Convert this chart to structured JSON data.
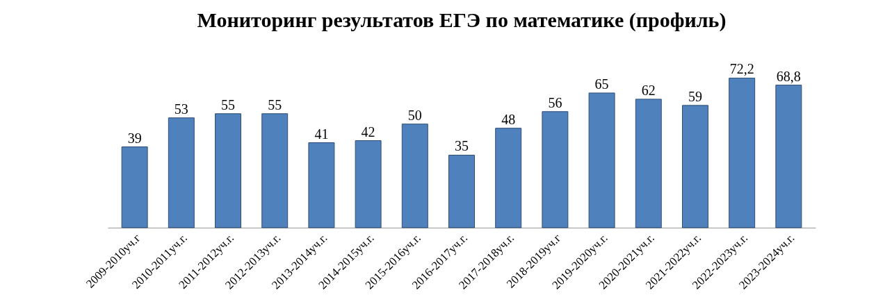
{
  "chart_data": {
    "type": "bar",
    "title": "Мониторинг результатов ЕГЭ по математике (профиль)",
    "categories": [
      "2009-2010уч.г",
      "2010-2011уч.г.",
      "2011-2012уч.г.",
      "2012-2013уч.г.",
      "2013-2014уч.г.",
      "2014-2015уч.г.",
      "2015-2016уч.г.",
      "2016-2017уч.г.",
      "2017-2018уч.г.",
      "2018-2019уч.г",
      "2019-2020уч.г.",
      "2020-2021уч.г.",
      "2021-2022уч.г.",
      "2022-2023уч.г.",
      "2023-2024уч.г."
    ],
    "values": [
      39,
      53,
      55,
      55,
      41,
      42,
      50,
      35,
      48,
      56,
      65,
      62,
      59,
      72.2,
      68.8
    ],
    "value_labels": [
      "39",
      "53",
      "55",
      "55",
      "41",
      "42",
      "50",
      "35",
      "48",
      "56",
      "65",
      "62",
      "59",
      "72,2",
      "68,8"
    ],
    "color": "#4f81bd"
  }
}
